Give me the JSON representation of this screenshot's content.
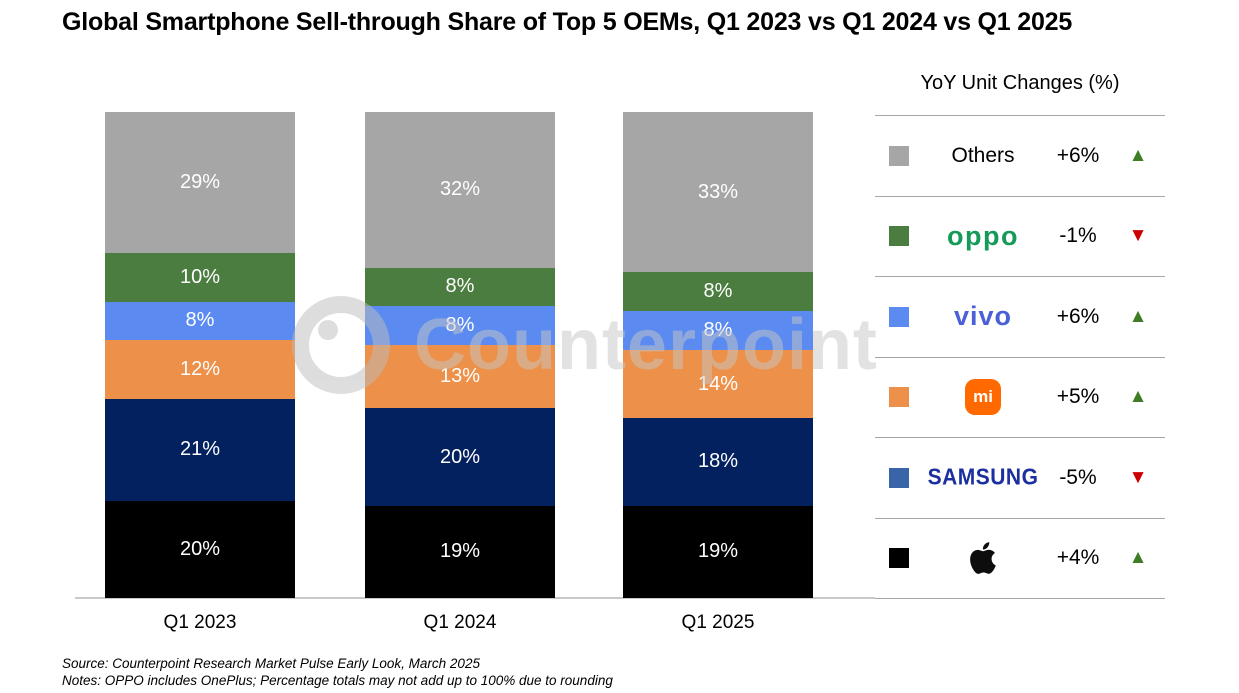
{
  "title": "Global Smartphone Sell-through Share of Top 5 OEMs, Q1 2023 vs Q1 2024 vs Q1 2025",
  "watermark": {
    "text": "Counterpoint"
  },
  "chart_data": {
    "type": "bar",
    "stacked": true,
    "unit": "%",
    "title": "Global Smartphone Sell-through Share of Top 5 OEMs, Q1 2023 vs Q1 2024 vs Q1 2025",
    "categories": [
      "Q1 2023",
      "Q1 2024",
      "Q1 2025"
    ],
    "series_bottom_to_top": [
      {
        "name": "Apple",
        "color": "#000000",
        "values": [
          20,
          19,
          19
        ]
      },
      {
        "name": "Samsung",
        "color": "#04215f",
        "values": [
          21,
          20,
          18
        ]
      },
      {
        "name": "Xiaomi",
        "color": "#ed9049",
        "values": [
          12,
          13,
          14
        ]
      },
      {
        "name": "vivo",
        "color": "#5b8bf0",
        "values": [
          8,
          8,
          8
        ]
      },
      {
        "name": "OPPO",
        "color": "#4a7d3f",
        "values": [
          10,
          8,
          8
        ]
      },
      {
        "name": "Others",
        "color": "#a6a6a6",
        "values": [
          29,
          32,
          33
        ]
      }
    ],
    "ylim": [
      0,
      100
    ],
    "grid": false,
    "legend_position": "right"
  },
  "legend": {
    "header": "YoY Unit Changes (%)",
    "rows": [
      {
        "name": "Others",
        "logo": "text",
        "label": "Others",
        "square_color": "#a6a6a6",
        "change": "+6%",
        "direction": "up"
      },
      {
        "name": "OPPO",
        "logo": "oppo",
        "label": "oppo",
        "square_color": "#4a7d3f",
        "change": "-1%",
        "direction": "down"
      },
      {
        "name": "vivo",
        "logo": "vivo",
        "label": "vivo",
        "square_color": "#5b8bf0",
        "change": "+6%",
        "direction": "up"
      },
      {
        "name": "Xiaomi",
        "logo": "mi",
        "label": "mi",
        "square_color": "#ed9049",
        "change": "+5%",
        "direction": "up"
      },
      {
        "name": "Samsung",
        "logo": "samsung",
        "label": "SAMSUNG",
        "square_color": "#3a64a8",
        "change": "-5%",
        "direction": "down"
      },
      {
        "name": "Apple",
        "logo": "apple",
        "label": "",
        "square_color": "#000000",
        "change": "+4%",
        "direction": "up"
      }
    ],
    "icons": {
      "up": "▲",
      "down": "▼"
    },
    "colors": {
      "up": "#3e7d23",
      "down": "#cc0000"
    },
    "brand_colors": {
      "oppo": "#169a5a",
      "vivo": "#4b5fd6",
      "samsung": "#1c2f9e",
      "mi_bg": "#ff6900"
    }
  },
  "footer": {
    "source": "Source: Counterpoint Research Market Pulse Early Look, March 2025",
    "notes": "Notes: OPPO includes OnePlus; Percentage totals may not add up to 100% due to rounding"
  }
}
